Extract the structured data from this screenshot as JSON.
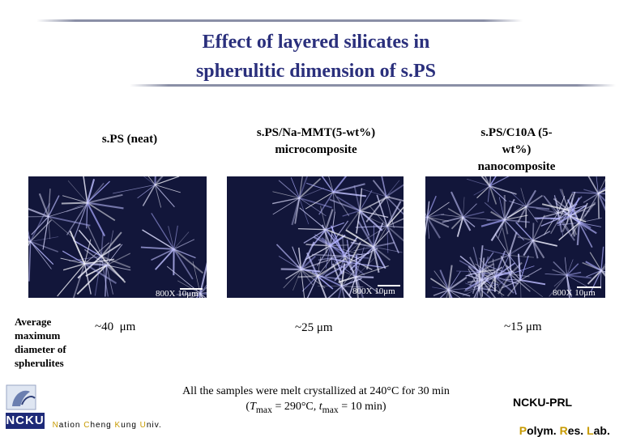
{
  "slide": {
    "title_line1": "Effect of layered silicates in",
    "title_line2": "spherulitic dimension of s.PS"
  },
  "columns": [
    {
      "label_lines": [
        "s.PS (neat)"
      ],
      "scale_text": "800X 10μm",
      "measurement": "~40  μm"
    },
    {
      "label_lines": [
        "s.PS/Na-MMT(5-wt%)",
        "microcomposite"
      ],
      "scale_text": "800X 10μm",
      "measurement": "~25 μm"
    },
    {
      "label_lines": [
        "s.PS/C10A (5-",
        "wt%)",
        "nanocomposite"
      ],
      "scale_text": "800X 10μm",
      "measurement": "~15 μm"
    }
  ],
  "side_label": [
    "Average",
    "maximum",
    "diameter of",
    "spherulites"
  ],
  "note": {
    "line1": "All the samples were melt crystallized at 240°C for 30 min",
    "line2_prefix": "(",
    "t_symbol": "T",
    "t_sub": "max",
    "line2_middle": " = 290°C, ",
    "time_symbol": "t",
    "time_sub": "max",
    "line2_suffix": " = 10 min)"
  },
  "footer_left": {
    "logo_text": "NCKU",
    "univ": [
      {
        "initial": "N",
        "rest": "ation "
      },
      {
        "initial": "C",
        "rest": "heng "
      },
      {
        "initial": "K",
        "rest": "ung "
      },
      {
        "initial": "U",
        "rest": "niv."
      }
    ]
  },
  "footer_right": {
    "lab_name": "NCKU-PRL",
    "parts": [
      {
        "initial": "P",
        "rest": "olym. "
      },
      {
        "initial": "R",
        "rest": "es. "
      },
      {
        "initial": "L",
        "rest": "ab."
      }
    ]
  },
  "colors": {
    "title": "#2a2f7c",
    "accent_yellow": "#c79a00",
    "micro_bg": "#12163a"
  }
}
